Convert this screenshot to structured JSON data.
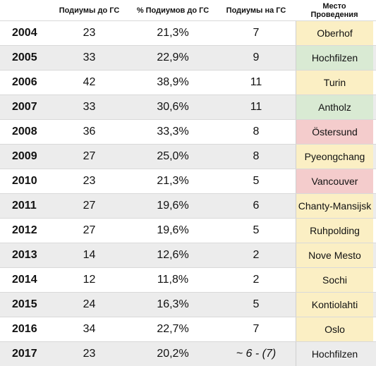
{
  "headers": {
    "podiums_before": "Подиумы до ГС",
    "pct_podiums_before": "% Подиумов до ГС",
    "podiums_at": "Подиумы на ГС",
    "place_line1": "Место",
    "place_line2": "Проведения"
  },
  "rows": [
    {
      "year": "2004",
      "podiums_before": "23",
      "pct": "21,3%",
      "podiums_at": "7",
      "place": "Oberhof",
      "place_color": "#fbefc4"
    },
    {
      "year": "2005",
      "podiums_before": "33",
      "pct": "22,9%",
      "podiums_at": "9",
      "place": "Hochfilzen",
      "place_color": "#d9ead3"
    },
    {
      "year": "2006",
      "podiums_before": "42",
      "pct": "38,9%",
      "podiums_at": "11",
      "place": "Turin",
      "place_color": "#fbefc4"
    },
    {
      "year": "2007",
      "podiums_before": "33",
      "pct": "30,6%",
      "podiums_at": "11",
      "place": "Antholz",
      "place_color": "#d9ead3"
    },
    {
      "year": "2008",
      "podiums_before": "36",
      "pct": "33,3%",
      "podiums_at": "8",
      "place": "Östersund",
      "place_color": "#f4cccc"
    },
    {
      "year": "2009",
      "podiums_before": "27",
      "pct": "25,0%",
      "podiums_at": "8",
      "place": "Pyeongchang",
      "place_color": "#fbefc4"
    },
    {
      "year": "2010",
      "podiums_before": "23",
      "pct": "21,3%",
      "podiums_at": "5",
      "place": "Vancouver",
      "place_color": "#f4cccc"
    },
    {
      "year": "2011",
      "podiums_before": "27",
      "pct": "19,6%",
      "podiums_at": "6",
      "place": "Chanty-Mansijsk",
      "place_color": "#fbefc4"
    },
    {
      "year": "2012",
      "podiums_before": "27",
      "pct": "19,6%",
      "podiums_at": "5",
      "place": "Ruhpolding",
      "place_color": "#fbefc4"
    },
    {
      "year": "2013",
      "podiums_before": "14",
      "pct": "12,6%",
      "podiums_at": "2",
      "place": "Nove Mesto",
      "place_color": "#fbefc4"
    },
    {
      "year": "2014",
      "podiums_before": "12",
      "pct": "11,8%",
      "podiums_at": "2",
      "place": "Sochi",
      "place_color": "#fbefc4"
    },
    {
      "year": "2015",
      "podiums_before": "24",
      "pct": "16,3%",
      "podiums_at": "5",
      "place": "Kontiolahti",
      "place_color": "#fbefc4"
    },
    {
      "year": "2016",
      "podiums_before": "34",
      "pct": "22,7%",
      "podiums_at": "7",
      "place": "Oslo",
      "place_color": "#fbefc4"
    },
    {
      "year": "2017",
      "podiums_before": "23",
      "pct": "20,2%",
      "podiums_at": "~ 6 - (7)",
      "place": "Hochfilzen",
      "place_color": "#ececec"
    }
  ]
}
